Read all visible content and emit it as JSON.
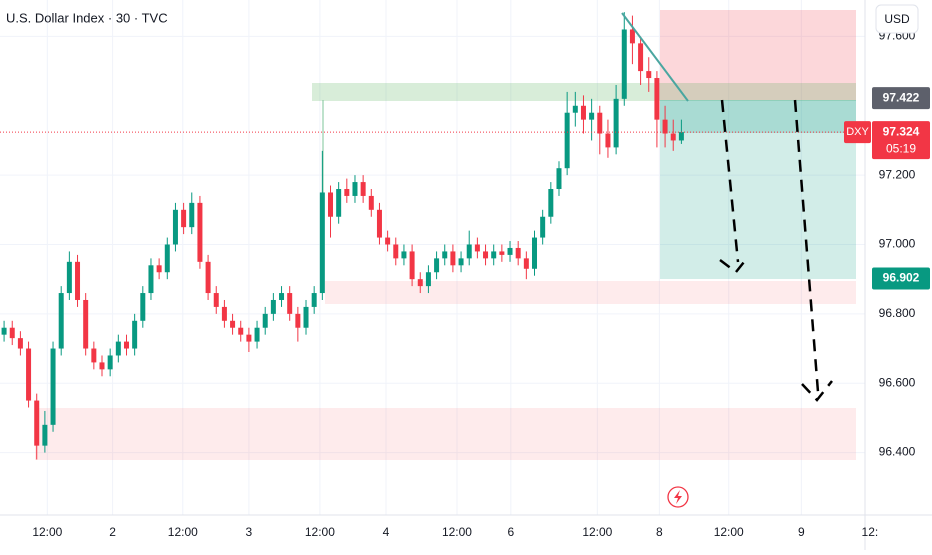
{
  "header": {
    "title": "U.S. Dollar Index · 30 · TVC",
    "currency": "USD"
  },
  "chart_data": {
    "type": "candlestick",
    "symbol": "DXY",
    "countdown": "05:19",
    "up_color": "#089981",
    "down_color": "#f23645",
    "grid": true,
    "ylim": [
      96.22,
      97.705
    ],
    "yticks": [
      {
        "value": 96.4,
        "label": "96.400"
      },
      {
        "value": 96.6,
        "label": "96.600"
      },
      {
        "value": 96.8,
        "label": "96.800"
      },
      {
        "value": 97.0,
        "label": "97.000"
      },
      {
        "value": 97.2,
        "label": "97.200"
      },
      {
        "value": 97.6,
        "label": "97.600"
      }
    ],
    "xlim": [
      -0.5,
      105.5
    ],
    "xticks": [
      {
        "value": 5.3,
        "label": "12:00"
      },
      {
        "value": 13.3,
        "label": "2"
      },
      {
        "value": 21.9,
        "label": "12:00"
      },
      {
        "value": 30,
        "label": "3"
      },
      {
        "value": 38.7,
        "label": "12:00"
      },
      {
        "value": 46.8,
        "label": "4"
      },
      {
        "value": 55.5,
        "label": "12:00"
      },
      {
        "value": 62.1,
        "label": "6"
      },
      {
        "value": 72.7,
        "label": "12:00"
      },
      {
        "value": 80.3,
        "label": "8"
      },
      {
        "value": 88.8,
        "label": "12:00"
      },
      {
        "value": 97.7,
        "label": "9"
      },
      {
        "value": 106.1,
        "label": "12:"
      }
    ],
    "price_labels": [
      {
        "value": 97.422,
        "label": "97.422"
      },
      {
        "value": 96.902,
        "label": "96.902"
      }
    ],
    "last_price": {
      "value": 97.324,
      "label": "97.324"
    },
    "open": [
      96.74,
      96.76,
      96.73,
      96.7,
      96.55,
      96.42,
      96.48,
      96.7,
      96.86,
      96.95,
      96.84,
      96.7,
      96.66,
      96.64,
      96.68,
      96.72,
      96.7,
      96.78,
      96.86,
      96.94,
      96.92,
      97.0,
      97.1,
      97.05,
      97.12,
      96.95,
      96.86,
      96.82,
      96.78,
      96.76,
      96.74,
      96.72,
      96.76,
      96.8,
      96.84,
      96.86,
      96.8,
      96.76,
      96.82,
      96.86,
      97.15,
      97.08,
      97.16,
      97.14,
      97.18,
      97.14,
      97.1,
      97.02,
      97.0,
      96.96,
      96.98,
      96.9,
      96.88,
      96.92,
      96.96,
      96.98,
      96.94,
      96.96,
      97.0,
      96.98,
      96.96,
      96.98,
      96.97,
      96.99,
      96.96,
      96.93,
      97.02,
      97.08,
      97.16,
      97.22,
      97.38,
      97.4,
      97.36,
      97.38,
      97.32,
      97.28,
      97.42,
      97.62,
      97.58,
      97.5,
      97.48,
      97.36,
      97.32,
      97.3
    ],
    "high": [
      96.78,
      96.78,
      96.75,
      96.72,
      96.57,
      96.52,
      96.72,
      96.88,
      96.98,
      96.97,
      96.86,
      96.72,
      96.68,
      96.7,
      96.74,
      96.74,
      96.8,
      96.88,
      96.96,
      96.96,
      97.02,
      97.12,
      97.12,
      97.15,
      97.14,
      96.97,
      96.88,
      96.84,
      96.8,
      96.78,
      96.76,
      96.78,
      96.82,
      96.86,
      96.88,
      96.88,
      96.82,
      96.84,
      96.88,
      97.27,
      97.17,
      97.18,
      97.19,
      97.2,
      97.2,
      97.16,
      97.12,
      97.04,
      97.02,
      97.0,
      97.0,
      96.92,
      96.94,
      96.98,
      97.0,
      97.0,
      96.98,
      97.04,
      97.02,
      97.0,
      97.0,
      97.0,
      97.01,
      97.01,
      96.98,
      97.04,
      97.1,
      97.18,
      97.24,
      97.44,
      97.44,
      97.43,
      97.42,
      97.4,
      97.36,
      97.46,
      97.67,
      97.66,
      97.6,
      97.54,
      97.5,
      97.4,
      97.36,
      97.36
    ],
    "low": [
      96.72,
      96.71,
      96.68,
      96.53,
      96.38,
      96.4,
      96.46,
      96.68,
      96.84,
      96.82,
      96.68,
      96.64,
      96.62,
      96.62,
      96.66,
      96.68,
      96.68,
      96.76,
      96.84,
      96.9,
      96.9,
      96.98,
      97.03,
      97.03,
      96.93,
      96.84,
      96.8,
      96.76,
      96.74,
      96.72,
      96.69,
      96.7,
      96.74,
      96.78,
      96.82,
      96.78,
      96.72,
      96.74,
      96.8,
      96.84,
      97.02,
      97.06,
      97.12,
      97.12,
      97.12,
      97.08,
      97.0,
      96.98,
      96.94,
      96.94,
      96.88,
      96.86,
      96.86,
      96.9,
      96.94,
      96.92,
      96.92,
      96.94,
      96.96,
      96.94,
      96.94,
      96.95,
      96.95,
      96.94,
      96.9,
      96.91,
      97.0,
      97.06,
      97.14,
      97.2,
      97.34,
      97.32,
      97.3,
      97.26,
      97.25,
      97.26,
      97.4,
      97.52,
      97.46,
      97.44,
      97.28,
      97.28,
      97.27,
      97.29
    ],
    "close": [
      96.76,
      96.73,
      96.7,
      96.55,
      96.42,
      96.48,
      96.7,
      96.86,
      96.95,
      96.84,
      96.7,
      96.66,
      96.64,
      96.68,
      96.72,
      96.7,
      96.78,
      96.86,
      96.94,
      96.92,
      97.0,
      97.1,
      97.05,
      97.12,
      96.95,
      96.86,
      96.82,
      96.78,
      96.76,
      96.74,
      96.72,
      96.76,
      96.8,
      96.84,
      96.86,
      96.8,
      96.76,
      96.82,
      96.86,
      97.15,
      97.08,
      97.16,
      97.14,
      97.18,
      97.14,
      97.1,
      97.02,
      97.0,
      96.96,
      96.98,
      96.9,
      96.88,
      96.92,
      96.96,
      96.98,
      96.94,
      96.96,
      97.0,
      96.98,
      96.96,
      96.98,
      96.97,
      96.99,
      96.96,
      96.93,
      97.02,
      97.08,
      97.16,
      97.22,
      97.38,
      97.4,
      97.36,
      97.38,
      97.32,
      97.28,
      97.42,
      97.62,
      97.58,
      97.5,
      97.48,
      97.36,
      97.32,
      97.3,
      97.324
    ]
  }
}
